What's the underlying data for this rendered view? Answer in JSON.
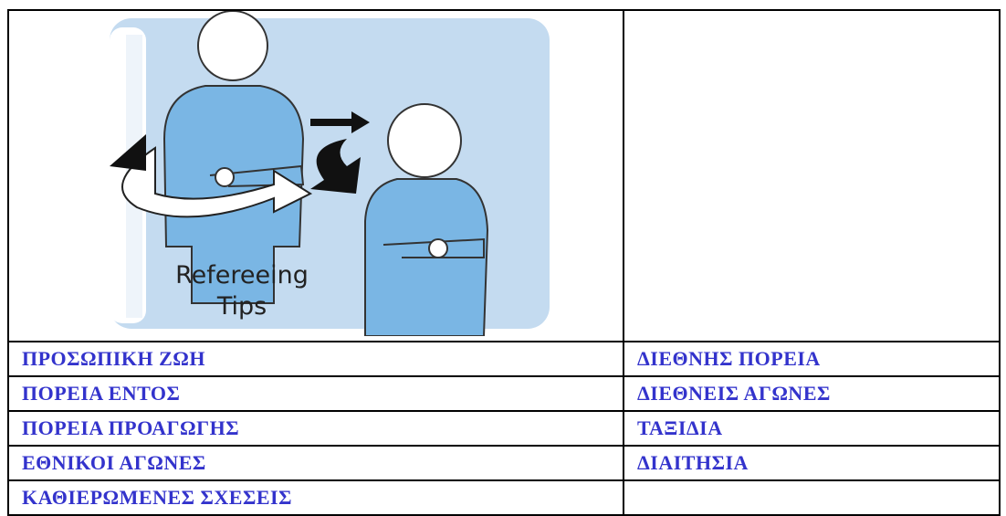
{
  "image": {
    "caption": [
      "Refereeing",
      "Tips"
    ]
  },
  "table": {
    "rows": [
      [
        "ΠΡΟΣΩΠΙΚΗ ΖΩΗ",
        "ΔΙΕΘΝΗΣ ΠΟΡΕΙΑ"
      ],
      [
        "ΠΟΡΕΙΑ ΕΝΤΟΣ",
        "ΔΙΕΘΝΕΙΣ ΑΓΩΝΕΣ"
      ],
      [
        "ΠΟΡΕΙΑ ΠΡΟΑΓΩΓΗΣ",
        "ΤΑΞΙΔΙΑ"
      ],
      [
        "ΕΘΝΙΚΟΙ ΑΓΩΝΕΣ",
        "ΔΙΑΙΤΗΣΙΑ"
      ],
      [
        "ΚΑΘΙΕΡΩΜΕΝΕΣ ΣΧΕΣΕΙΣ"
      ]
    ]
  }
}
